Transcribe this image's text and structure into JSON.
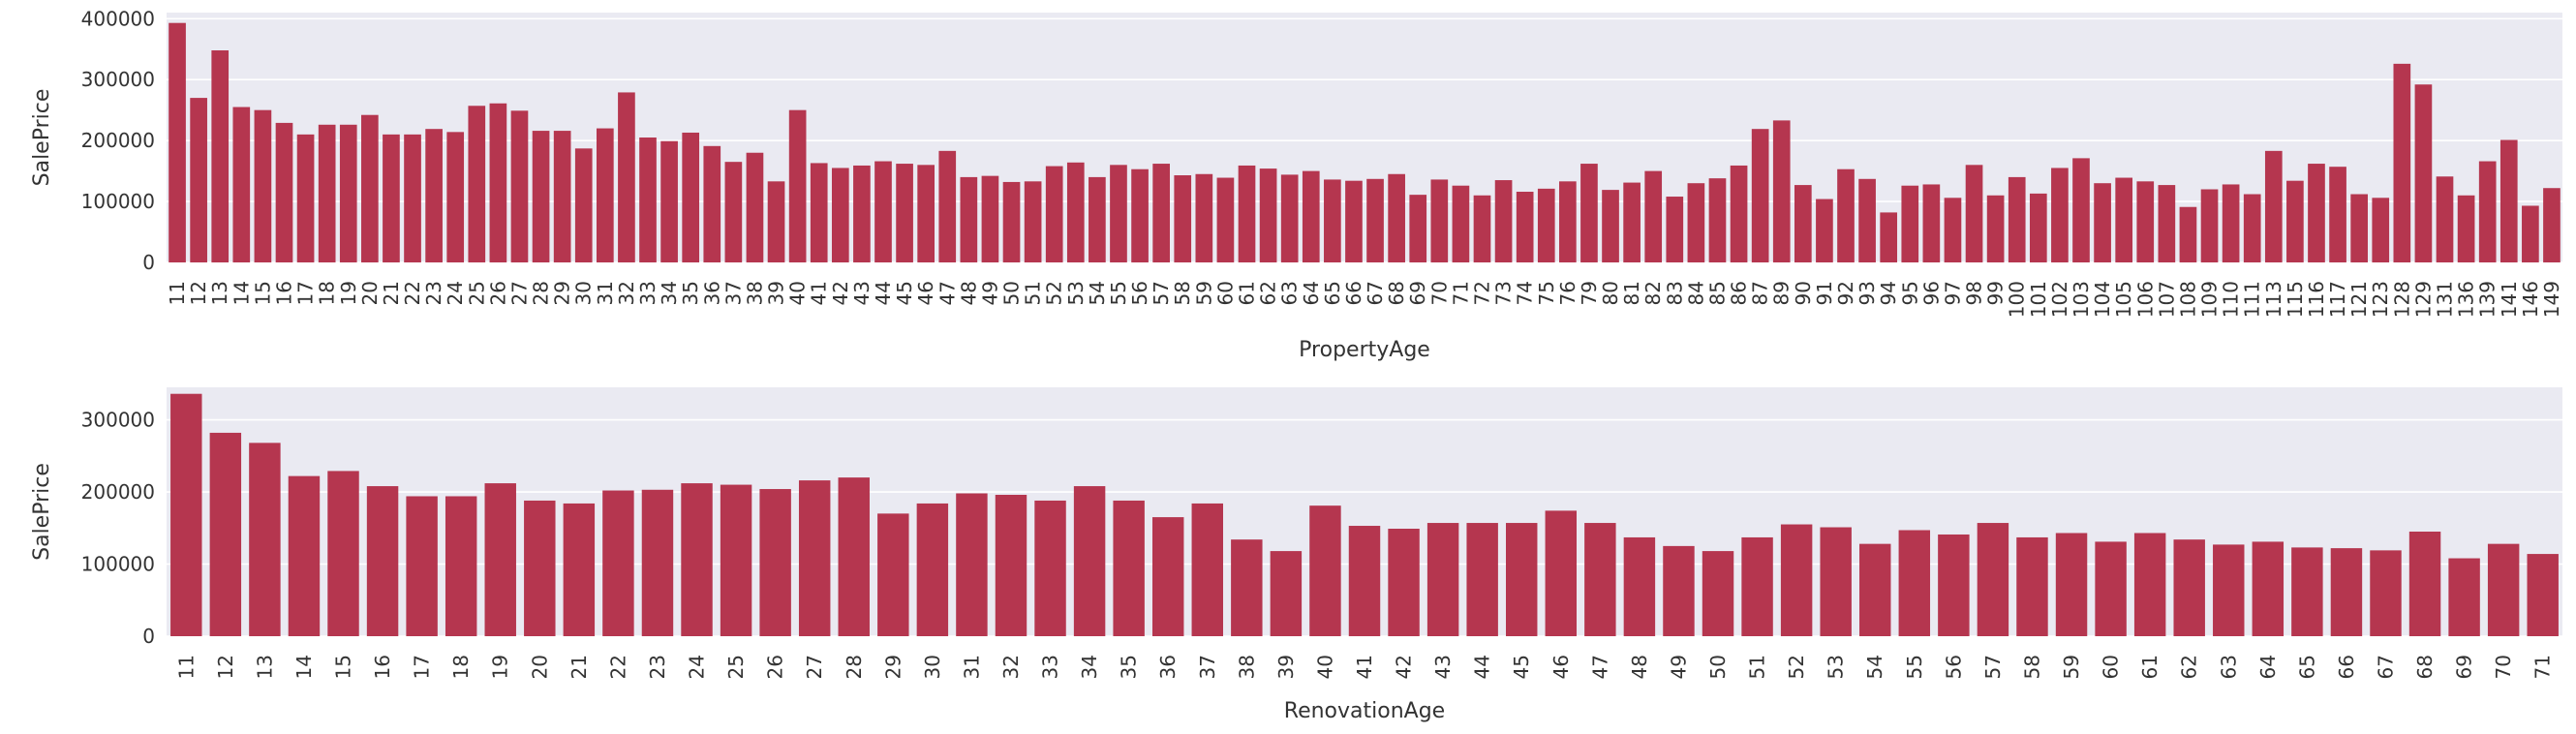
{
  "colors": {
    "bar": "#b5364f",
    "plot_bg": "#eaeaf2",
    "grid": "#ffffff",
    "text": "#333333"
  },
  "chart_data": [
    {
      "type": "bar",
      "title": "",
      "xlabel": "PropertyAge",
      "ylabel": "SalePrice",
      "ylim": [
        0,
        410000
      ],
      "yticks": [
        0,
        100000,
        200000,
        300000,
        400000
      ],
      "grid": true,
      "categories": [
        "11",
        "12",
        "13",
        "14",
        "15",
        "16",
        "17",
        "18",
        "19",
        "20",
        "21",
        "22",
        "23",
        "24",
        "25",
        "26",
        "27",
        "28",
        "29",
        "30",
        "31",
        "32",
        "33",
        "34",
        "35",
        "36",
        "37",
        "38",
        "39",
        "40",
        "41",
        "42",
        "43",
        "44",
        "45",
        "46",
        "47",
        "48",
        "49",
        "50",
        "51",
        "52",
        "53",
        "54",
        "55",
        "56",
        "57",
        "58",
        "59",
        "60",
        "61",
        "62",
        "63",
        "64",
        "65",
        "66",
        "67",
        "68",
        "69",
        "70",
        "71",
        "72",
        "73",
        "74",
        "75",
        "76",
        "79",
        "80",
        "81",
        "82",
        "83",
        "84",
        "85",
        "86",
        "87",
        "89",
        "90",
        "91",
        "92",
        "93",
        "94",
        "95",
        "96",
        "97",
        "98",
        "99",
        "100",
        "101",
        "102",
        "103",
        "104",
        "105",
        "106",
        "107",
        "108",
        "109",
        "110",
        "111",
        "113",
        "115",
        "116",
        "117",
        "121",
        "123",
        "128",
        "129",
        "131",
        "136",
        "139",
        "141",
        "146",
        "149"
      ],
      "values": [
        393000,
        270000,
        348000,
        255000,
        250000,
        229000,
        210000,
        226000,
        226000,
        242000,
        210000,
        210000,
        219000,
        214000,
        257000,
        261000,
        249000,
        216000,
        216000,
        187000,
        220000,
        279000,
        205000,
        199000,
        213000,
        191000,
        165000,
        180000,
        133000,
        250000,
        163000,
        155000,
        159000,
        166000,
        162000,
        160000,
        183000,
        140000,
        142000,
        132000,
        133000,
        158000,
        164000,
        140000,
        160000,
        153000,
        162000,
        143000,
        145000,
        139000,
        159000,
        154000,
        144000,
        150000,
        136000,
        134000,
        137000,
        145000,
        111000,
        136000,
        126000,
        110000,
        135000,
        116000,
        121000,
        133000,
        162000,
        119000,
        131000,
        150000,
        108000,
        130000,
        138000,
        159000,
        219000,
        233000,
        127000,
        104000,
        153000,
        137000,
        82000,
        126000,
        128000,
        106000,
        160000,
        110000,
        140000,
        113000,
        155000,
        171000,
        130000,
        139000,
        133000,
        127000,
        91000,
        120000,
        128000,
        112000,
        183000,
        134000,
        162000,
        157000,
        112000,
        106000,
        326000,
        292000,
        141000,
        110000,
        166000,
        201000,
        93000,
        122000
      ]
    },
    {
      "type": "bar",
      "title": "",
      "xlabel": "RenovationAge",
      "ylabel": "SalePrice",
      "ylim": [
        0,
        345000
      ],
      "yticks": [
        0,
        100000,
        200000,
        300000
      ],
      "grid": true,
      "categories": [
        "11",
        "12",
        "13",
        "14",
        "15",
        "16",
        "17",
        "18",
        "19",
        "20",
        "21",
        "22",
        "23",
        "24",
        "25",
        "26",
        "27",
        "28",
        "29",
        "30",
        "31",
        "32",
        "33",
        "34",
        "35",
        "36",
        "37",
        "38",
        "39",
        "40",
        "41",
        "42",
        "43",
        "44",
        "45",
        "46",
        "47",
        "48",
        "49",
        "50",
        "51",
        "52",
        "53",
        "54",
        "55",
        "56",
        "57",
        "58",
        "59",
        "60",
        "61",
        "62",
        "63",
        "64",
        "65",
        "66",
        "67",
        "68",
        "69",
        "70",
        "71"
      ],
      "values": [
        336000,
        282000,
        268000,
        222000,
        229000,
        208000,
        194000,
        194000,
        212000,
        188000,
        184000,
        202000,
        203000,
        212000,
        210000,
        204000,
        216000,
        220000,
        170000,
        184000,
        198000,
        196000,
        188000,
        208000,
        188000,
        165000,
        184000,
        134000,
        118000,
        181000,
        153000,
        149000,
        157000,
        157000,
        157000,
        174000,
        157000,
        137000,
        125000,
        118000,
        137000,
        155000,
        151000,
        128000,
        147000,
        141000,
        157000,
        137000,
        143000,
        131000,
        143000,
        134000,
        127000,
        131000,
        123000,
        122000,
        119000,
        145000,
        108000,
        128000,
        114000
      ]
    }
  ]
}
